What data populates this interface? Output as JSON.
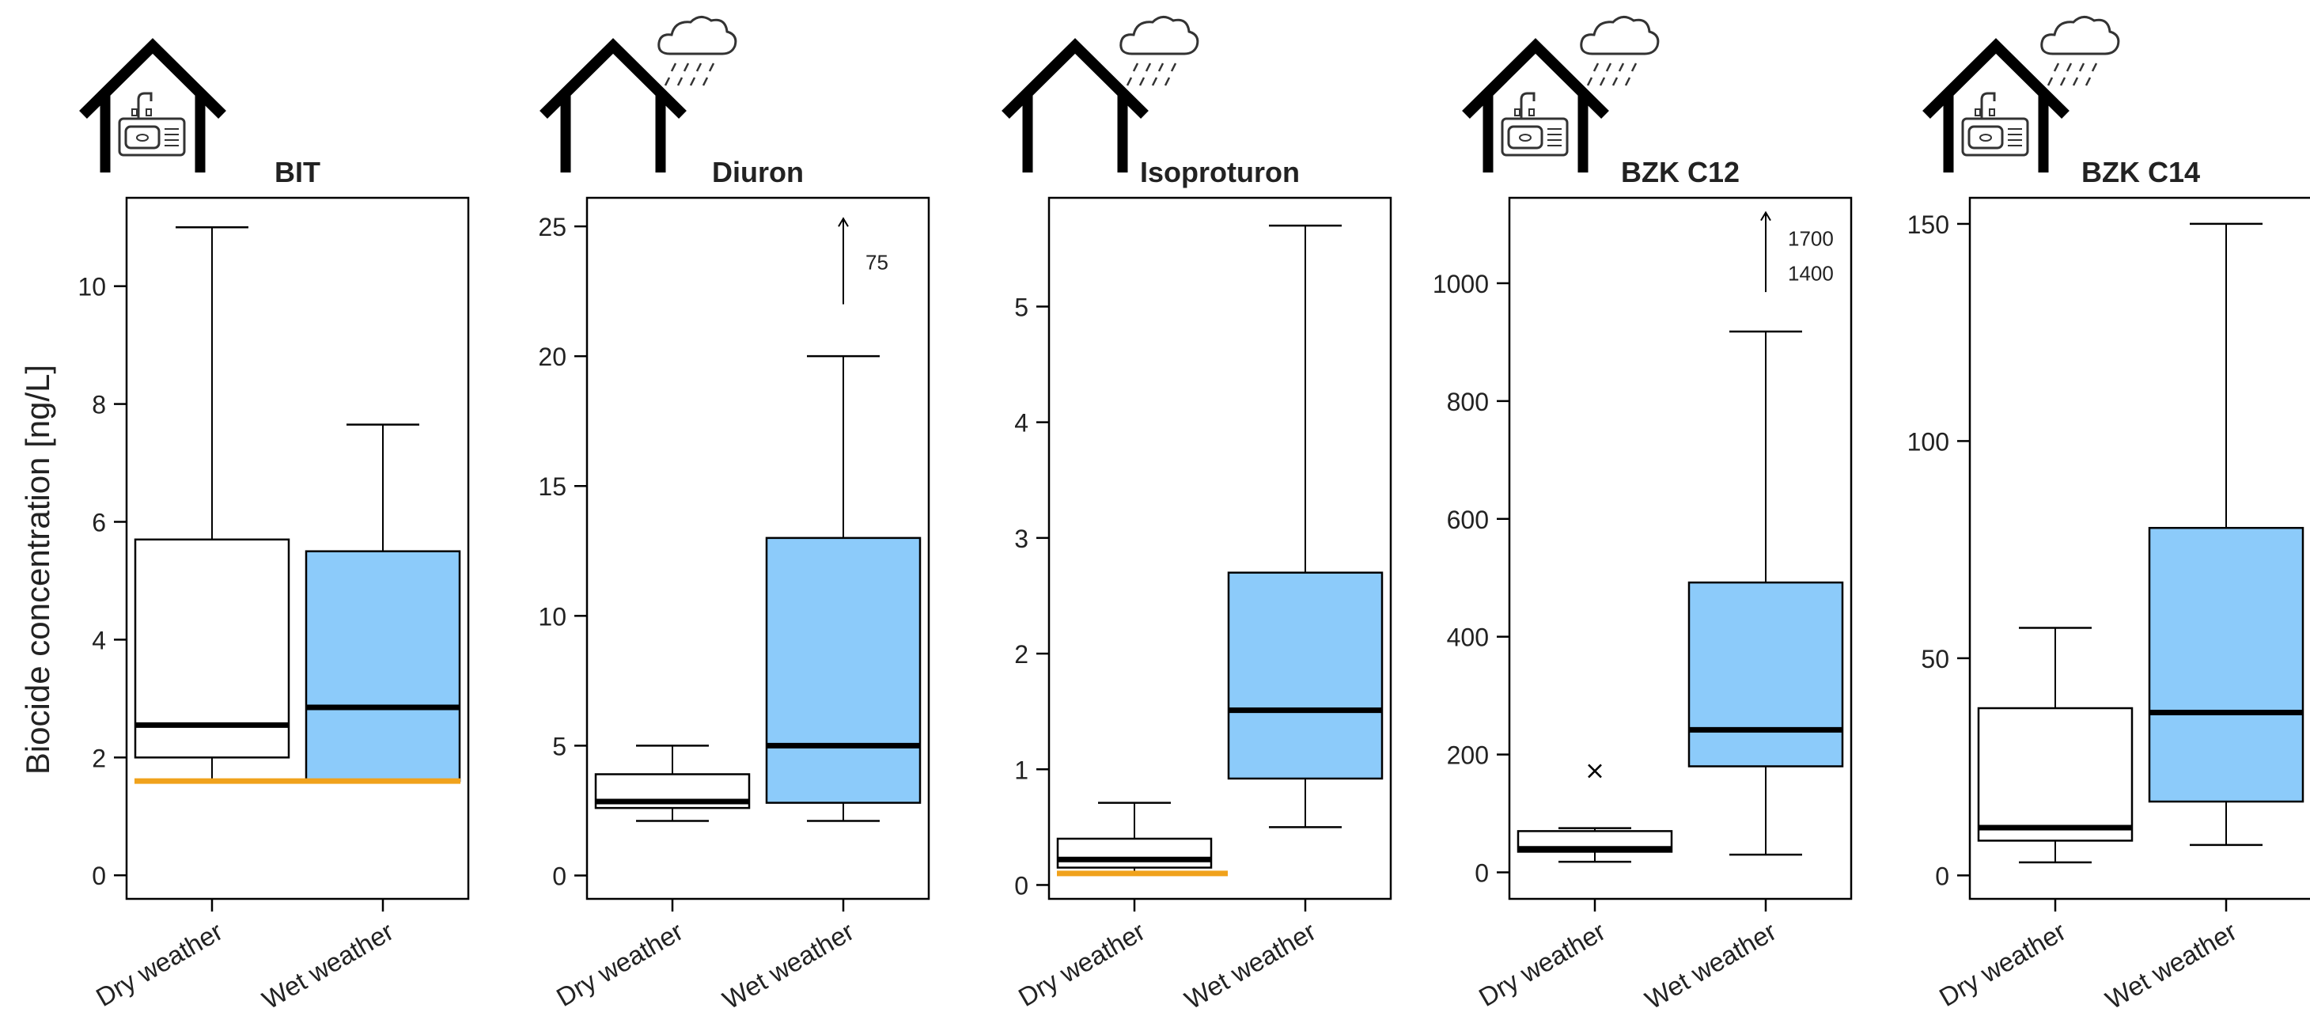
{
  "ylabel": "Biocide concentration [ng/L]",
  "colors": {
    "wet_fill": "#8ccbfa",
    "dry_fill": "#ffffff",
    "threshold": "#f0a21c",
    "stroke": "#000000"
  },
  "chart_data": [
    {
      "type": "box",
      "title": "BIT",
      "icon": "house-with-sink-icon",
      "categories": [
        "Dry weather",
        "Wet weather"
      ],
      "ylim": [
        -0.4,
        11.5
      ],
      "yticks": [
        0,
        2,
        4,
        6,
        8,
        10
      ],
      "ytick_labels": [
        "0",
        "2",
        "4",
        "6",
        "8",
        "10"
      ],
      "boxes": [
        {
          "category": "Dry weather",
          "whisker_low": 1.6,
          "q1": 2.0,
          "median": 2.55,
          "q3": 5.7,
          "whisker_high": 11.0,
          "outliers": []
        },
        {
          "category": "Wet weather",
          "whisker_low": 1.6,
          "q1": 1.6,
          "median": 2.85,
          "q3": 5.5,
          "whisker_high": 7.65,
          "outliers": []
        }
      ],
      "threshold": {
        "value": 1.6,
        "span": "both"
      },
      "arrow": null
    },
    {
      "type": "box",
      "title": "Diuron",
      "icon": "house-with-rain-icon",
      "categories": [
        "Dry weather",
        "Wet weather"
      ],
      "ylim": [
        -0.9,
        26.1
      ],
      "yticks": [
        0,
        5,
        10,
        15,
        20,
        25
      ],
      "ytick_labels": [
        "0",
        "5",
        "10",
        "15",
        "20",
        "25"
      ],
      "boxes": [
        {
          "category": "Dry weather",
          "whisker_low": 2.1,
          "q1": 2.6,
          "median": 2.85,
          "q3": 3.9,
          "whisker_high": 5.0,
          "outliers": []
        },
        {
          "category": "Wet weather",
          "whisker_low": 2.1,
          "q1": 2.8,
          "median": 5.0,
          "q3": 13.0,
          "whisker_high": 20.0,
          "outliers": []
        }
      ],
      "threshold": null,
      "arrow": {
        "category": "Wet weather",
        "from": 22.0,
        "to": 25.3,
        "labels": [
          "75"
        ]
      }
    },
    {
      "type": "box",
      "title": "Isoproturon",
      "icon": "house-with-rain-icon",
      "categories": [
        "Dry weather",
        "Wet weather"
      ],
      "ylim": [
        -0.12,
        5.94
      ],
      "yticks": [
        0,
        1,
        2,
        3,
        4,
        5
      ],
      "ytick_labels": [
        "0",
        "1",
        "2",
        "3",
        "4",
        "5"
      ],
      "boxes": [
        {
          "category": "Dry weather",
          "whisker_low": 0.1,
          "q1": 0.15,
          "median": 0.22,
          "q3": 0.4,
          "whisker_high": 0.71,
          "outliers": []
        },
        {
          "category": "Wet weather",
          "whisker_low": 0.5,
          "q1": 0.92,
          "median": 1.51,
          "q3": 2.7,
          "whisker_high": 5.7,
          "outliers": []
        }
      ],
      "threshold": {
        "value": 0.1,
        "span": "dry"
      },
      "arrow": null
    },
    {
      "type": "box",
      "title": "BZK C12",
      "icon": "house-with-sink-and-rain-icon",
      "categories": [
        "Dry weather",
        "Wet weather"
      ],
      "ylim": [
        -45,
        1145
      ],
      "yticks": [
        0,
        200,
        400,
        600,
        800,
        1000
      ],
      "ytick_labels": [
        "0",
        "200",
        "400",
        "600",
        "800",
        "1000"
      ],
      "boxes": [
        {
          "category": "Dry weather",
          "whisker_low": 18,
          "q1": 35,
          "median": 40,
          "q3": 70,
          "whisker_high": 75,
          "outliers": [
            172
          ]
        },
        {
          "category": "Wet weather",
          "whisker_low": 30,
          "q1": 180,
          "median": 242,
          "q3": 492,
          "whisker_high": 918,
          "outliers": []
        }
      ],
      "threshold": null,
      "arrow": {
        "category": "Wet weather",
        "from": 985,
        "to": 1120,
        "labels": [
          "1700",
          "1400"
        ]
      }
    },
    {
      "type": "box",
      "title": "BZK C14",
      "icon": "house-with-sink-and-rain-icon",
      "categories": [
        "Dry weather",
        "Wet weather"
      ],
      "ylim": [
        -5.4,
        156
      ],
      "yticks": [
        0,
        50,
        100,
        150
      ],
      "ytick_labels": [
        "0",
        "50",
        "100",
        "150"
      ],
      "boxes": [
        {
          "category": "Dry weather",
          "whisker_low": 3,
          "q1": 8,
          "median": 11,
          "q3": 38.5,
          "whisker_high": 57,
          "outliers": []
        },
        {
          "category": "Wet weather",
          "whisker_low": 7,
          "q1": 17,
          "median": 37.5,
          "q3": 80,
          "whisker_high": 150,
          "outliers": []
        }
      ],
      "threshold": null,
      "arrow": null
    }
  ]
}
